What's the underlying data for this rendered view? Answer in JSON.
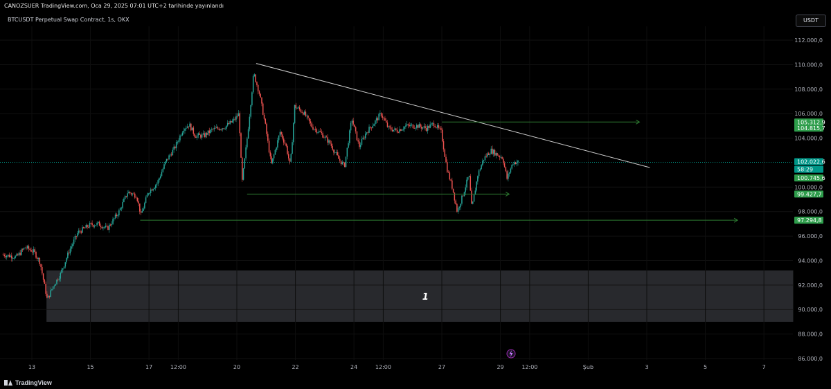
{
  "header": {
    "publisher_line": "CANOZSUER TradingView.com, Oca 29, 2025 07:01 UTC+2 tarihinde yayınlandı"
  },
  "symbol": {
    "title": "BTCUSDT Perpetual Swap Contract, 1s, OKX"
  },
  "currency_button": "USDT",
  "footer": {
    "brand": "TradingView"
  },
  "colors": {
    "up": "#26a69a",
    "down": "#ef5350",
    "level_line": "#2e7d32",
    "label_green": "#2e9d4b",
    "price_label": "#009688",
    "trendline": "#cfcfcf",
    "zone": "#2a2b2f"
  },
  "chart_data": {
    "type": "candlestick",
    "title": "BTCUSDT Perpetual Swap Contract, 1s, OKX",
    "x_tick_labels": [
      "13",
      "15",
      "17",
      "12:00",
      "20",
      "22",
      "24",
      "12:00",
      "27",
      "29",
      "12:00",
      "Şub",
      "3",
      "5",
      "7"
    ],
    "y_tick_labels": [
      "112.000,0",
      "110.000,0",
      "108.000,0",
      "106.000,0",
      "104.000,0",
      "100.000,0",
      "98.000,0",
      "96.000,0",
      "94.000,0",
      "92.000,0",
      "90.000,0",
      "88.000,0",
      "86.000,0"
    ],
    "ylim": [
      85500,
      113500
    ],
    "x_range_days": [
      "Jan 12",
      "Feb 7"
    ],
    "price_labels": [
      {
        "text": "105.312,9",
        "value": 105312.9,
        "style": "green"
      },
      {
        "text": "104.815,7",
        "value": 104815.7,
        "style": "green"
      },
      {
        "text": "102.022,6",
        "value": 102022.6,
        "style": "current"
      },
      {
        "text": "58:29",
        "value": 101450,
        "style": "current-timer"
      },
      {
        "text": "100.745,6",
        "value": 100745.6,
        "style": "green"
      },
      {
        "text": "99.427,7",
        "value": 99427.7,
        "style": "green"
      },
      {
        "text": "97.294,8",
        "value": 97294.8,
        "style": "green"
      }
    ],
    "current_price": 102022.6,
    "drawings": {
      "trendline": {
        "from": {
          "day": 20.66,
          "price": 110100
        },
        "to": {
          "day": 34.1,
          "price": 101600
        }
      },
      "horizontal_arrows": [
        {
          "from_day": 27.0,
          "to_day": 33.75,
          "price": 105312.9
        },
        {
          "from_day": 20.35,
          "to_day": 29.3,
          "price": 99427.7
        },
        {
          "from_day": 16.7,
          "to_day": 37.1,
          "price": 97294.8
        }
      ],
      "zone": {
        "from_day": 13.5,
        "to_day": 39.0,
        "price_top": 93200,
        "price_bottom": 89000,
        "label": "1"
      }
    },
    "series": [
      {
        "path_points": [
          [
            12.0,
            94500
          ],
          [
            12.5,
            94300
          ],
          [
            12.8,
            95100
          ],
          [
            13.1,
            94700
          ],
          [
            13.3,
            93900
          ],
          [
            13.55,
            90800
          ],
          [
            13.75,
            91900
          ],
          [
            14.0,
            92900
          ],
          [
            14.3,
            94800
          ],
          [
            14.6,
            96300
          ],
          [
            15.0,
            96900
          ],
          [
            15.3,
            97000
          ],
          [
            15.6,
            96600
          ],
          [
            16.0,
            98000
          ],
          [
            16.3,
            99600
          ],
          [
            16.6,
            99300
          ],
          [
            16.75,
            97700
          ],
          [
            17.0,
            99600
          ],
          [
            17.3,
            100300
          ],
          [
            17.6,
            102100
          ],
          [
            17.9,
            103200
          ],
          [
            18.2,
            104800
          ],
          [
            18.4,
            105100
          ],
          [
            18.6,
            104200
          ],
          [
            18.9,
            104200
          ],
          [
            19.2,
            104700
          ],
          [
            19.6,
            104900
          ],
          [
            19.9,
            105400
          ],
          [
            20.1,
            106000
          ],
          [
            20.2,
            100300
          ],
          [
            20.4,
            104500
          ],
          [
            20.6,
            109300
          ],
          [
            20.8,
            107600
          ],
          [
            21.0,
            105000
          ],
          [
            21.2,
            101800
          ],
          [
            21.5,
            104500
          ],
          [
            21.7,
            103400
          ],
          [
            21.85,
            101700
          ],
          [
            22.0,
            106600
          ],
          [
            22.3,
            106100
          ],
          [
            22.6,
            104900
          ],
          [
            22.9,
            104400
          ],
          [
            23.2,
            103600
          ],
          [
            23.5,
            102300
          ],
          [
            23.7,
            101700
          ],
          [
            23.95,
            105600
          ],
          [
            24.2,
            103300
          ],
          [
            24.45,
            104500
          ],
          [
            24.7,
            105200
          ],
          [
            24.95,
            106000
          ],
          [
            25.2,
            104800
          ],
          [
            25.5,
            104600
          ],
          [
            25.8,
            105000
          ],
          [
            26.2,
            105000
          ],
          [
            26.5,
            104800
          ],
          [
            26.75,
            105200
          ],
          [
            27.0,
            104500
          ],
          [
            27.2,
            101500
          ],
          [
            27.4,
            99800
          ],
          [
            27.55,
            98000
          ],
          [
            27.75,
            99400
          ],
          [
            27.95,
            101000
          ],
          [
            28.05,
            98200
          ],
          [
            28.25,
            101000
          ],
          [
            28.45,
            102300
          ],
          [
            28.7,
            103000
          ],
          [
            28.95,
            102600
          ],
          [
            29.1,
            102400
          ],
          [
            29.25,
            100700
          ],
          [
            29.45,
            102000
          ],
          [
            29.6,
            102050
          ]
        ]
      }
    ]
  }
}
